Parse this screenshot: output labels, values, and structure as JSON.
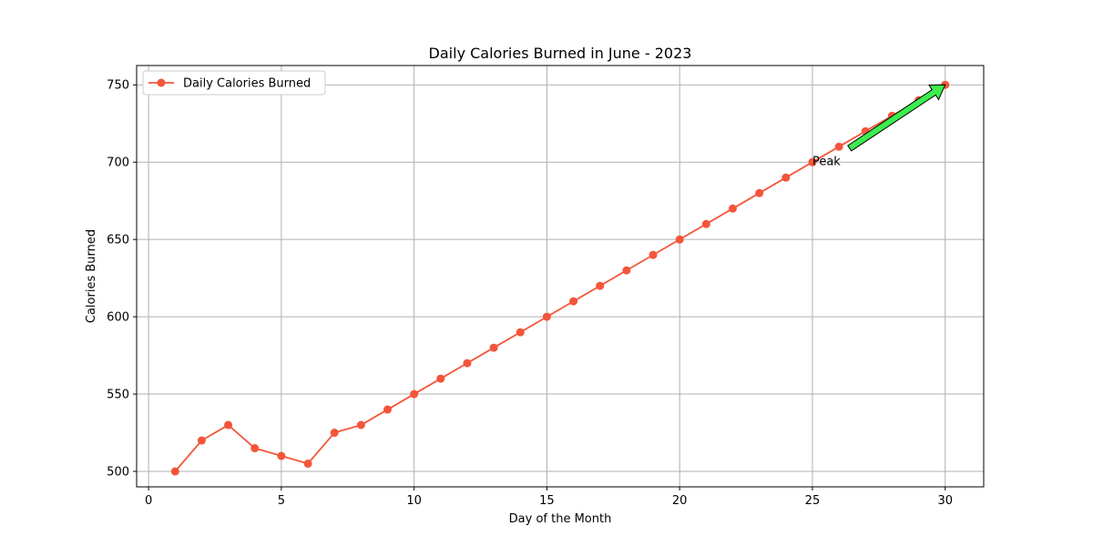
{
  "chart_data": {
    "type": "line",
    "title": "Daily Calories Burned in June - 2023",
    "xlabel": "Day of the Month",
    "ylabel": "Calories Burned",
    "xlim": [
      -0.45,
      31.45
    ],
    "ylim": [
      490,
      762.5
    ],
    "xticks": [
      0,
      5,
      10,
      15,
      20,
      25,
      30
    ],
    "yticks": [
      500,
      550,
      600,
      650,
      700,
      750
    ],
    "grid": true,
    "legend_position": "top-left",
    "series": [
      {
        "name": "Daily Calories Burned",
        "color": "#f4553a",
        "marker": "circle",
        "x": [
          1,
          2,
          3,
          4,
          5,
          6,
          7,
          8,
          9,
          10,
          11,
          12,
          13,
          14,
          15,
          16,
          17,
          18,
          19,
          20,
          21,
          22,
          23,
          24,
          25,
          26,
          27,
          28,
          29,
          30
        ],
        "y": [
          500,
          520,
          530,
          515,
          510,
          505,
          525,
          530,
          540,
          550,
          560,
          570,
          580,
          590,
          600,
          610,
          620,
          630,
          640,
          650,
          660,
          670,
          680,
          690,
          700,
          710,
          720,
          730,
          740,
          750
        ]
      }
    ],
    "annotations": [
      {
        "text": "Peak",
        "text_at": [
          25,
          700
        ],
        "arrow_tail": [
          26.4,
          709
        ],
        "arrow_to": [
          30,
          750
        ],
        "arrow_color": "#3ded4f"
      }
    ]
  }
}
